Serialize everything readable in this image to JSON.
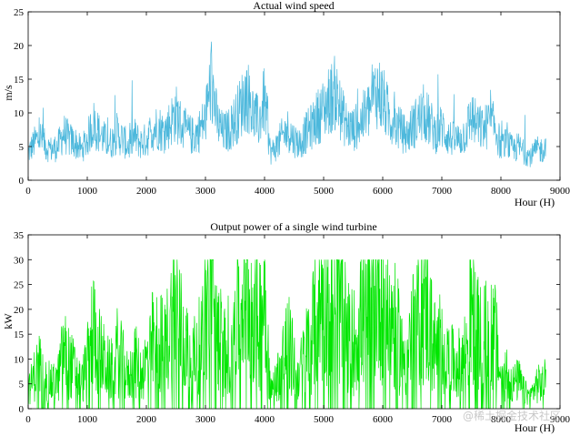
{
  "watermark": "@稀土掘金技术社区",
  "chart_data": [
    {
      "type": "line",
      "title": "Actual wind speed",
      "xlabel": "Hour (H)",
      "ylabel": "m/s",
      "xlim": [
        0,
        9000
      ],
      "ylim": [
        0,
        25
      ],
      "xticks": [
        0,
        1000,
        2000,
        3000,
        4000,
        5000,
        6000,
        7000,
        8000,
        9000
      ],
      "yticks": [
        0,
        5,
        10,
        15,
        20,
        25
      ],
      "grid": false,
      "color": "#4db8dc",
      "series": [
        {
          "x": [
            0,
            100,
            200,
            300,
            400,
            500,
            600,
            700,
            800,
            900,
            1000,
            1100,
            1200,
            1300,
            1400,
            1500,
            1600,
            1700,
            1800,
            1900,
            2000,
            2100,
            2200,
            2300,
            2400,
            2500,
            2600,
            2700,
            2800,
            2900,
            3000,
            3100,
            3200,
            3300,
            3400,
            3500,
            3600,
            3700,
            3800,
            3900,
            4000,
            4100,
            4200,
            4300,
            4400,
            4500,
            4600,
            4700,
            4800,
            4900,
            5000,
            5100,
            5200,
            5300,
            5400,
            5500,
            5600,
            5700,
            5800,
            5900,
            6000,
            6100,
            6200,
            6300,
            6400,
            6500,
            6600,
            6700,
            6800,
            6900,
            7000,
            7100,
            7200,
            7300,
            7400,
            7500,
            7600,
            7700,
            7800,
            7900,
            8000,
            8100,
            8200,
            8300,
            8400,
            8500,
            8600,
            8700,
            8760
          ],
          "values": [
            4,
            5.5,
            6.5,
            5,
            4.5,
            5,
            7,
            6,
            5.5,
            4.5,
            6,
            8.5,
            7,
            6,
            5.5,
            7,
            6,
            5,
            6.5,
            5.5,
            6,
            7.5,
            8,
            7,
            8.5,
            10,
            8,
            7,
            6.5,
            7.5,
            9,
            15,
            8.5,
            7,
            7.5,
            9,
            11,
            13,
            10,
            8.5,
            12,
            4,
            5,
            6.5,
            7.5,
            6,
            5.5,
            7,
            8,
            9.5,
            10.5,
            12,
            13,
            10,
            8,
            7.5,
            8.5,
            9.5,
            11,
            13.5,
            12,
            9.5,
            8.5,
            7.5,
            6.5,
            8,
            9,
            10,
            8.5,
            7,
            8,
            6.5,
            6,
            6,
            7,
            9.5,
            8,
            7.5,
            8.5,
            8,
            5,
            5.5,
            4.5,
            5,
            4,
            3.5,
            4.5,
            4.5,
            5
          ]
        }
      ]
    },
    {
      "type": "line",
      "title": "Output power of a single wind turbine",
      "xlabel": "Hour (H)",
      "ylabel": "kW",
      "xlim": [
        0,
        9000
      ],
      "ylim": [
        0,
        35
      ],
      "xticks": [
        0,
        1000,
        2000,
        3000,
        4000,
        5000,
        6000,
        7000,
        8000,
        9000
      ],
      "yticks": [
        0,
        5,
        10,
        15,
        20,
        25,
        30,
        35
      ],
      "grid": false,
      "color": "#00e600",
      "saturation": 30,
      "series": [
        {
          "x": [
            0,
            100,
            200,
            300,
            400,
            500,
            600,
            700,
            800,
            900,
            1000,
            1100,
            1200,
            1300,
            1400,
            1500,
            1600,
            1700,
            1800,
            1900,
            2000,
            2100,
            2200,
            2300,
            2400,
            2500,
            2600,
            2700,
            2800,
            2900,
            3000,
            3100,
            3200,
            3300,
            3400,
            3500,
            3600,
            3700,
            3800,
            3900,
            4000,
            4100,
            4200,
            4300,
            4400,
            4500,
            4600,
            4700,
            4800,
            4900,
            5000,
            5100,
            5200,
            5300,
            5400,
            5500,
            5600,
            5700,
            5800,
            5900,
            6000,
            6100,
            6200,
            6300,
            6400,
            6500,
            6600,
            6700,
            6800,
            6900,
            7000,
            7100,
            7200,
            7300,
            7400,
            7500,
            7600,
            7700,
            7800,
            7900,
            8000,
            8100,
            8200,
            8300,
            8400,
            8500,
            8600,
            8700,
            8760
          ],
          "values": [
            4,
            8,
            11,
            7,
            6,
            7,
            14,
            11,
            9,
            6,
            11,
            20,
            14,
            11,
            9,
            14,
            11,
            7,
            12,
            9,
            11,
            16,
            18,
            14,
            20,
            26,
            18,
            14,
            12,
            16,
            22,
            30,
            20,
            14,
            16,
            22,
            28,
            30,
            26,
            20,
            30,
            4,
            7,
            12,
            16,
            11,
            9,
            14,
            18,
            24,
            27,
            30,
            30,
            26,
            18,
            16,
            20,
            24,
            28,
            30,
            30,
            24,
            20,
            16,
            12,
            18,
            22,
            26,
            20,
            14,
            18,
            12,
            11,
            11,
            14,
            24,
            18,
            16,
            20,
            18,
            7,
            9,
            6,
            7,
            4,
            3,
            6,
            6,
            7
          ]
        }
      ]
    }
  ]
}
